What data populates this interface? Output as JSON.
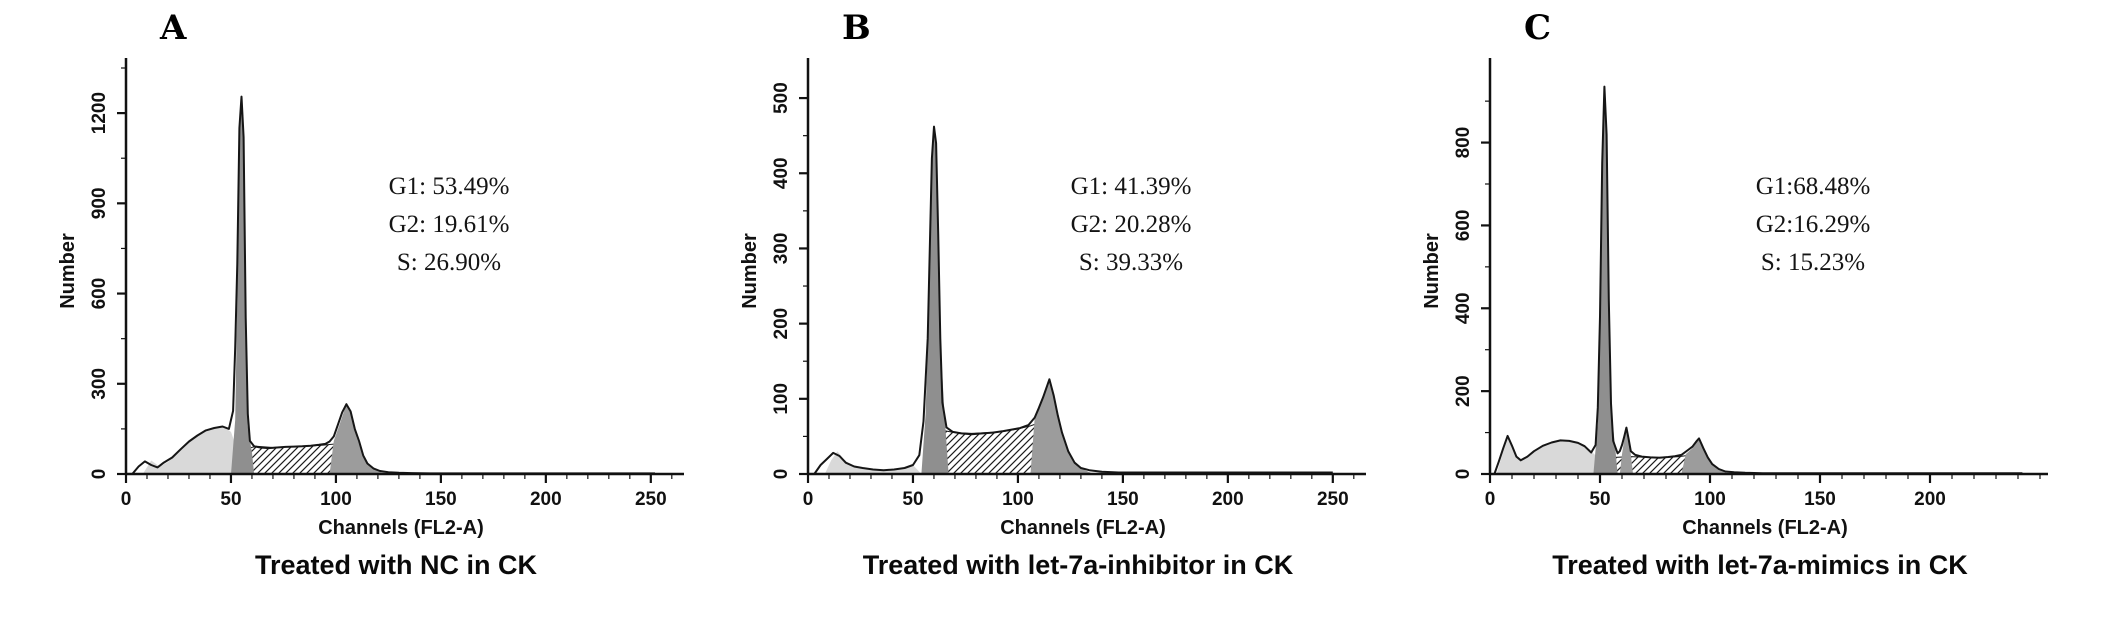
{
  "colors": {
    "outline": "#161616",
    "g1_fill": "#8f8f8f",
    "g2_fill": "#9c9c9c",
    "debris_fill": "#d9d9d9",
    "hatch_line": "#1c1c1c",
    "text": "#111111",
    "background": "#ffffff"
  },
  "chart_data": [
    {
      "type": "area",
      "panel_label": "A",
      "title": "Treated with NC in CK",
      "xlabel": "Channels (FL2-A)",
      "ylabel": "Number",
      "xlim": [
        0,
        262
      ],
      "ylim": [
        0,
        1350
      ],
      "xticks": [
        0,
        50,
        100,
        150,
        200,
        250
      ],
      "yticks": [
        0,
        300,
        600,
        900,
        1200
      ],
      "x_minor_step": 10,
      "annotations": [
        "G1: 53.49%",
        "G2: 19.61%",
        "S: 26.90%"
      ],
      "phases": {
        "G1": 53.49,
        "G2": 19.61,
        "S": 26.9
      },
      "g1_peak_channel": 55,
      "g2_peak_channel": 105,
      "regions": {
        "debris": [
          [
            8,
            0
          ],
          [
            12,
            45
          ],
          [
            16,
            25
          ],
          [
            20,
            40
          ],
          [
            26,
            80
          ],
          [
            33,
            125
          ],
          [
            40,
            150
          ],
          [
            46,
            158
          ],
          [
            50,
            140
          ],
          [
            54,
            60
          ],
          [
            56,
            0
          ]
        ],
        "s": [
          [
            58,
            0
          ],
          [
            58,
            85
          ],
          [
            62,
            92
          ],
          [
            70,
            88
          ],
          [
            78,
            90
          ],
          [
            86,
            92
          ],
          [
            94,
            96
          ],
          [
            100,
            100
          ],
          [
            102,
            0
          ]
        ],
        "g1": [
          [
            50,
            0
          ],
          [
            52,
            180
          ],
          [
            53,
            600
          ],
          [
            54,
            1150
          ],
          [
            55,
            1255
          ],
          [
            56,
            1100
          ],
          [
            57,
            500
          ],
          [
            58,
            160
          ],
          [
            60,
            70
          ],
          [
            61,
            0
          ]
        ],
        "g2": [
          [
            97,
            0
          ],
          [
            99,
            110
          ],
          [
            102,
            170
          ],
          [
            105,
            232
          ],
          [
            107,
            205
          ],
          [
            110,
            120
          ],
          [
            113,
            60
          ],
          [
            116,
            28
          ],
          [
            120,
            10
          ],
          [
            124,
            0
          ]
        ]
      },
      "outline": [
        [
          3,
          0
        ],
        [
          6,
          25
        ],
        [
          9,
          42
        ],
        [
          12,
          30
        ],
        [
          15,
          22
        ],
        [
          18,
          38
        ],
        [
          22,
          55
        ],
        [
          26,
          82
        ],
        [
          30,
          108
        ],
        [
          34,
          128
        ],
        [
          38,
          145
        ],
        [
          42,
          153
        ],
        [
          46,
          158
        ],
        [
          49,
          150
        ],
        [
          51,
          210
        ],
        [
          52,
          420
        ],
        [
          53,
          700
        ],
        [
          54,
          1150
        ],
        [
          55,
          1255
        ],
        [
          56,
          1120
        ],
        [
          57,
          520
        ],
        [
          58,
          200
        ],
        [
          59,
          110
        ],
        [
          61,
          92
        ],
        [
          64,
          88
        ],
        [
          68,
          86
        ],
        [
          72,
          88
        ],
        [
          76,
          90
        ],
        [
          80,
          91
        ],
        [
          84,
          92
        ],
        [
          88,
          94
        ],
        [
          92,
          97
        ],
        [
          95,
          100
        ],
        [
          97,
          108
        ],
        [
          99,
          125
        ],
        [
          101,
          165
        ],
        [
          103,
          205
        ],
        [
          105,
          232
        ],
        [
          107,
          208
        ],
        [
          109,
          150
        ],
        [
          111,
          110
        ],
        [
          113,
          62
        ],
        [
          115,
          35
        ],
        [
          118,
          18
        ],
        [
          121,
          10
        ],
        [
          125,
          6
        ],
        [
          130,
          4
        ],
        [
          136,
          3
        ],
        [
          145,
          2
        ],
        [
          160,
          2
        ],
        [
          180,
          2
        ],
        [
          200,
          2
        ],
        [
          220,
          2
        ],
        [
          240,
          2
        ],
        [
          252,
          2
        ]
      ]
    },
    {
      "type": "area",
      "panel_label": "B",
      "title": "Treated with let-7a-inhibitor in CK",
      "xlabel": "Channels (FL2-A)",
      "ylabel": "Number",
      "xlim": [
        0,
        262
      ],
      "ylim": [
        0,
        540
      ],
      "xticks": [
        0,
        50,
        100,
        150,
        200,
        250
      ],
      "yticks": [
        0,
        100,
        200,
        300,
        400,
        500
      ],
      "x_minor_step": 10,
      "annotations": [
        "G1: 41.39%",
        "G2: 20.28%",
        "S: 39.33%"
      ],
      "phases": {
        "G1": 41.39,
        "G2": 20.28,
        "S": 39.33
      },
      "g1_peak_channel": 60,
      "g2_peak_channel": 115,
      "regions": {
        "debris": [
          [
            8,
            0
          ],
          [
            11,
            18
          ],
          [
            14,
            30
          ],
          [
            17,
            20
          ],
          [
            20,
            12
          ],
          [
            24,
            8
          ],
          [
            28,
            6
          ],
          [
            32,
            5
          ],
          [
            36,
            5
          ],
          [
            40,
            6
          ],
          [
            45,
            8
          ],
          [
            50,
            12
          ],
          [
            54,
            0
          ]
        ],
        "s": [
          [
            64,
            0
          ],
          [
            64,
            58
          ],
          [
            70,
            55
          ],
          [
            78,
            54
          ],
          [
            86,
            55
          ],
          [
            94,
            57
          ],
          [
            100,
            60
          ],
          [
            106,
            64
          ],
          [
            110,
            68
          ],
          [
            112,
            0
          ]
        ],
        "g1": [
          [
            54,
            0
          ],
          [
            56,
            80
          ],
          [
            58,
            260
          ],
          [
            59,
            400
          ],
          [
            60,
            462
          ],
          [
            61,
            445
          ],
          [
            62,
            330
          ],
          [
            63,
            180
          ],
          [
            65,
            80
          ],
          [
            67,
            0
          ]
        ],
        "g2": [
          [
            106,
            0
          ],
          [
            108,
            75
          ],
          [
            111,
            95
          ],
          [
            113,
            112
          ],
          [
            115,
            126
          ],
          [
            117,
            108
          ],
          [
            119,
            80
          ],
          [
            122,
            48
          ],
          [
            125,
            25
          ],
          [
            128,
            12
          ],
          [
            132,
            5
          ],
          [
            136,
            0
          ]
        ]
      },
      "outline": [
        [
          3,
          0
        ],
        [
          6,
          12
        ],
        [
          9,
          20
        ],
        [
          12,
          28
        ],
        [
          15,
          24
        ],
        [
          18,
          15
        ],
        [
          22,
          10
        ],
        [
          26,
          8
        ],
        [
          31,
          6
        ],
        [
          36,
          5
        ],
        [
          41,
          6
        ],
        [
          46,
          8
        ],
        [
          50,
          12
        ],
        [
          53,
          25
        ],
        [
          55,
          70
        ],
        [
          57,
          180
        ],
        [
          58,
          300
        ],
        [
          59,
          420
        ],
        [
          60,
          462
        ],
        [
          61,
          440
        ],
        [
          62,
          320
        ],
        [
          63,
          180
        ],
        [
          64,
          95
        ],
        [
          66,
          62
        ],
        [
          69,
          56
        ],
        [
          73,
          54
        ],
        [
          78,
          53
        ],
        [
          83,
          54
        ],
        [
          88,
          55
        ],
        [
          93,
          57
        ],
        [
          97,
          59
        ],
        [
          101,
          61
        ],
        [
          105,
          65
        ],
        [
          108,
          75
        ],
        [
          110,
          88
        ],
        [
          112,
          102
        ],
        [
          114,
          118
        ],
        [
          115,
          126
        ],
        [
          117,
          105
        ],
        [
          119,
          78
        ],
        [
          121,
          55
        ],
        [
          124,
          30
        ],
        [
          127,
          15
        ],
        [
          130,
          8
        ],
        [
          134,
          5
        ],
        [
          140,
          3
        ],
        [
          148,
          2
        ],
        [
          160,
          2
        ],
        [
          180,
          2
        ],
        [
          200,
          2
        ],
        [
          225,
          2
        ],
        [
          250,
          2
        ]
      ]
    },
    {
      "type": "area",
      "panel_label": "C",
      "title": "Treated with let-7a-mimics in CK",
      "xlabel": "Channels (FL2-A)",
      "ylabel": "Number",
      "xlim": [
        0,
        250
      ],
      "ylim": [
        0,
        980
      ],
      "xticks": [
        0,
        50,
        100,
        150,
        200
      ],
      "yticks": [
        0,
        200,
        400,
        600,
        800
      ],
      "x_minor_step": 10,
      "annotations": [
        "G1:68.48%",
        "G2:16.29%",
        "S: 15.23%"
      ],
      "phases": {
        "G1": 68.48,
        "G2": 16.29,
        "S": 15.23
      },
      "g1_peak_channel": 52,
      "g2_peak_channel": 95,
      "regions": {
        "debris": [
          [
            3,
            0
          ],
          [
            6,
            55
          ],
          [
            8,
            92
          ],
          [
            10,
            70
          ],
          [
            13,
            35
          ],
          [
            16,
            38
          ],
          [
            20,
            55
          ],
          [
            25,
            70
          ],
          [
            30,
            79
          ],
          [
            35,
            81
          ],
          [
            40,
            76
          ],
          [
            44,
            64
          ],
          [
            48,
            45
          ],
          [
            51,
            0
          ]
        ],
        "s": [
          [
            57,
            0
          ],
          [
            57,
            40
          ],
          [
            64,
            42
          ],
          [
            72,
            40
          ],
          [
            80,
            40
          ],
          [
            86,
            42
          ],
          [
            90,
            45
          ],
          [
            93,
            0
          ]
        ],
        "g1": [
          [
            47,
            0
          ],
          [
            49,
            120
          ],
          [
            50,
            350
          ],
          [
            51,
            700
          ],
          [
            52,
            935
          ],
          [
            53,
            830
          ],
          [
            54,
            420
          ],
          [
            55,
            160
          ],
          [
            57,
            60
          ],
          [
            58,
            0
          ]
        ],
        "spike": [
          [
            59,
            0
          ],
          [
            60,
            48
          ],
          [
            61,
            82
          ],
          [
            62,
            112
          ],
          [
            63,
            80
          ],
          [
            64,
            48
          ],
          [
            65,
            0
          ]
        ],
        "g2": [
          [
            87,
            0
          ],
          [
            89,
            48
          ],
          [
            92,
            62
          ],
          [
            95,
            85
          ],
          [
            97,
            60
          ],
          [
            99,
            38
          ],
          [
            102,
            20
          ],
          [
            105,
            10
          ],
          [
            108,
            0
          ]
        ]
      },
      "outline": [
        [
          2,
          0
        ],
        [
          4,
          30
        ],
        [
          6,
          62
        ],
        [
          8,
          92
        ],
        [
          10,
          68
        ],
        [
          12,
          42
        ],
        [
          14,
          33
        ],
        [
          17,
          42
        ],
        [
          20,
          55
        ],
        [
          24,
          68
        ],
        [
          28,
          76
        ],
        [
          32,
          81
        ],
        [
          36,
          80
        ],
        [
          40,
          75
        ],
        [
          43,
          67
        ],
        [
          46,
          52
        ],
        [
          48,
          70
        ],
        [
          49,
          160
        ],
        [
          50,
          380
        ],
        [
          51,
          750
        ],
        [
          52,
          935
        ],
        [
          53,
          820
        ],
        [
          54,
          420
        ],
        [
          55,
          170
        ],
        [
          56,
          80
        ],
        [
          58,
          50
        ],
        [
          59,
          55
        ],
        [
          60,
          70
        ],
        [
          61,
          90
        ],
        [
          62,
          112
        ],
        [
          63,
          85
        ],
        [
          64,
          55
        ],
        [
          66,
          46
        ],
        [
          69,
          42
        ],
        [
          73,
          40
        ],
        [
          77,
          39
        ],
        [
          81,
          41
        ],
        [
          84,
          43
        ],
        [
          87,
          46
        ],
        [
          90,
          58
        ],
        [
          92,
          66
        ],
        [
          94,
          80
        ],
        [
          95,
          86
        ],
        [
          97,
          62
        ],
        [
          99,
          40
        ],
        [
          101,
          24
        ],
        [
          104,
          12
        ],
        [
          107,
          6
        ],
        [
          111,
          4
        ],
        [
          116,
          3
        ],
        [
          124,
          2
        ],
        [
          135,
          2
        ],
        [
          150,
          2
        ],
        [
          170,
          2
        ],
        [
          195,
          2
        ],
        [
          220,
          2
        ],
        [
          242,
          2
        ]
      ]
    }
  ]
}
